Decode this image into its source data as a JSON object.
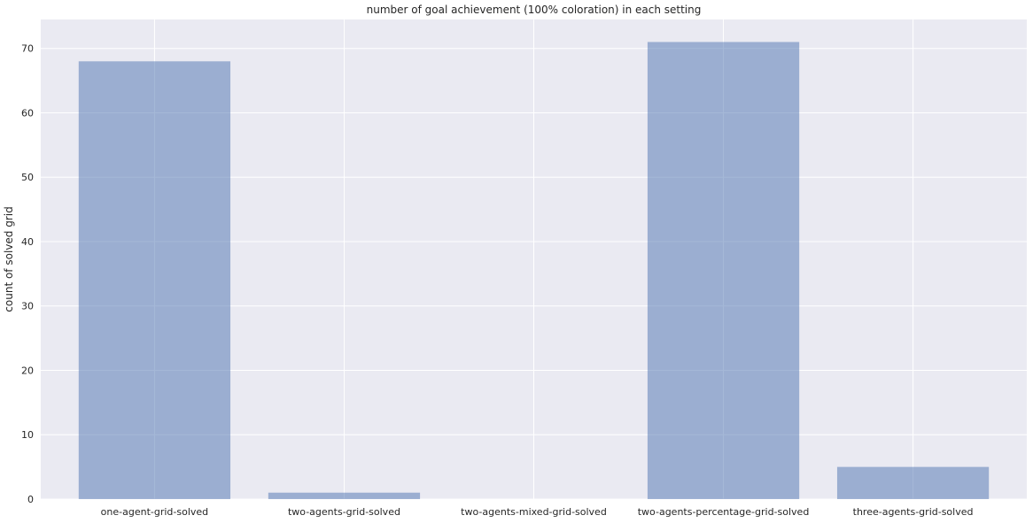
{
  "chart_data": {
    "type": "bar",
    "title": "number of goal achievement (100% coloration) in each setting",
    "xlabel": "",
    "ylabel": "count of solved grid",
    "categories": [
      "one-agent-grid-solved",
      "two-agents-grid-solved",
      "two-agents-mixed-grid-solved",
      "two-agents-percentage-grid-solved",
      "three-agents-grid-solved"
    ],
    "values": [
      68,
      1,
      0,
      71,
      5
    ],
    "ylim": [
      0,
      74.5
    ],
    "yticks": [
      0,
      10,
      20,
      30,
      40,
      50,
      60,
      70
    ],
    "grid": true,
    "legend": "none",
    "colors": {
      "bar": "#4c72b0",
      "bar_opacity": 0.5,
      "plot_background": "#eaeaf2",
      "grid": "#ffffff",
      "text": "#262626"
    }
  }
}
